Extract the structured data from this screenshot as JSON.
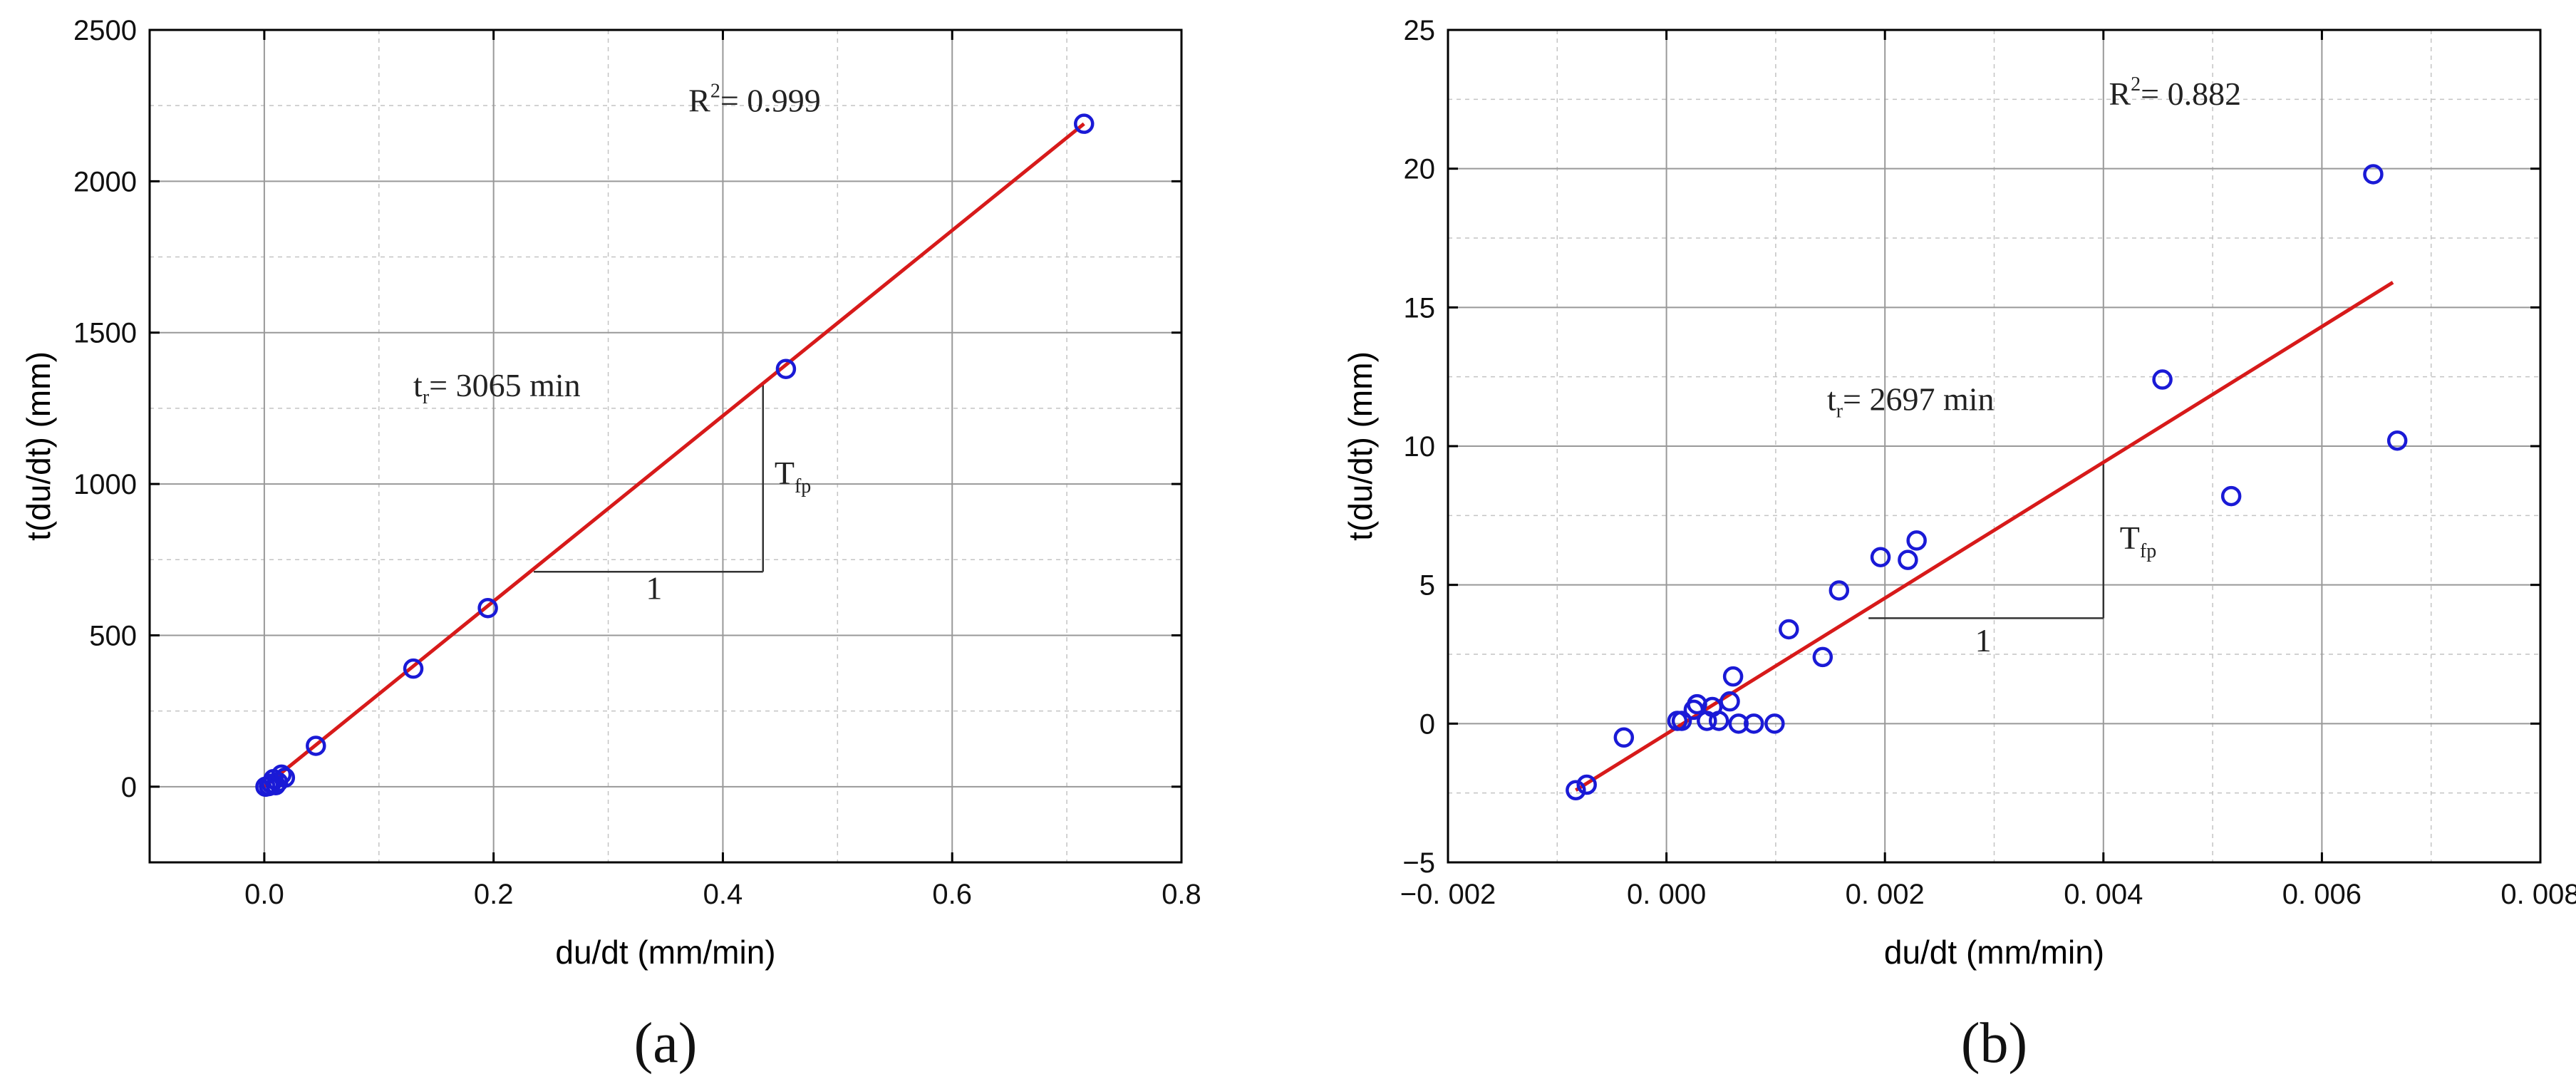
{
  "chart_data": [
    {
      "type": "scatter",
      "panel_label": "(a)",
      "xlabel": "du/dt (mm/min)",
      "ylabel": "t(du/dt) (mm)",
      "xlim": [
        -0.1,
        0.8
      ],
      "ylim": [
        -250,
        2500
      ],
      "xticks": [
        0.0,
        0.2,
        0.4,
        0.6,
        0.8
      ],
      "xtick_labels": [
        "0.0",
        "0.2",
        "0.4",
        "0.6",
        "0.8"
      ],
      "yticks": [
        0,
        500,
        1000,
        1500,
        2000,
        2500
      ],
      "ytick_labels": [
        "0",
        "500",
        "1000",
        "1500",
        "2000",
        "2500"
      ],
      "grid": true,
      "series": [
        {
          "name": "data",
          "x": [
            0.001,
            0.004,
            0.006,
            0.008,
            0.01,
            0.012,
            0.015,
            0.018,
            0.045,
            0.13,
            0.195,
            0.455,
            0.715
          ],
          "y": [
            0,
            2,
            10,
            25,
            5,
            15,
            40,
            30,
            135,
            390,
            590,
            1380,
            2190
          ]
        }
      ],
      "fit": {
        "x": [
          0.0,
          0.715
        ],
        "y": [
          0,
          2190
        ]
      },
      "r2_text": "R",
      "r2_sup": "2",
      "r2_value": "= 0.999",
      "tr_text": "t",
      "tr_sub": "r",
      "tr_value": "= 3065 min",
      "slope_run_label": "1",
      "slope_rise_label": "T",
      "slope_rise_sub": "fp",
      "slope_triangle": {
        "x0": 0.235,
        "x1": 0.435,
        "y_low": 710
      }
    },
    {
      "type": "scatter",
      "panel_label": "(b)",
      "xlabel": "du/dt (mm/min)",
      "ylabel": "t(du/dt) (mm)",
      "xlim": [
        -0.002,
        0.008
      ],
      "ylim": [
        -5,
        25
      ],
      "xticks": [
        -0.002,
        0.0,
        0.002,
        0.004,
        0.006,
        0.008
      ],
      "xtick_labels": [
        "−0. 002",
        "0. 000",
        "0. 002",
        "0. 004",
        "0. 006",
        "0. 008"
      ],
      "yticks": [
        -5,
        0,
        5,
        10,
        15,
        20,
        25
      ],
      "ytick_labels": [
        "−5",
        "0",
        "5",
        "10",
        "15",
        "20",
        "25"
      ],
      "grid": true,
      "series": [
        {
          "name": "data",
          "x": [
            -0.00083,
            -0.00073,
            -0.00039,
            0.0001,
            0.00014,
            0.00025,
            0.00028,
            0.00037,
            0.00042,
            0.00048,
            0.00058,
            0.00061,
            0.00066,
            0.0008,
            0.00099,
            0.00112,
            0.00143,
            0.00158,
            0.00196,
            0.00221,
            0.00229,
            0.00454,
            0.00517,
            0.00647,
            0.00669
          ],
          "y": [
            -2.4,
            -2.2,
            -0.5,
            0.1,
            0.1,
            0.5,
            0.7,
            0.1,
            0.6,
            0.1,
            0.8,
            1.7,
            0.0,
            0.0,
            0.0,
            3.4,
            2.4,
            4.8,
            6.0,
            5.9,
            6.6,
            12.4,
            8.2,
            19.8,
            10.2
          ]
        }
      ],
      "fit": {
        "x": [
          -0.00083,
          0.00665
        ],
        "y": [
          -2.4,
          15.9
        ]
      },
      "r2_text": "R",
      "r2_sup": "2",
      "r2_value": "= 0.882",
      "tr_text": "t",
      "tr_sub": "r",
      "tr_value": "= 2697 min",
      "slope_run_label": "1",
      "slope_rise_label": "T",
      "slope_rise_sub": "fp",
      "slope_triangle": {
        "x0": 0.00185,
        "x1": 0.004,
        "y_low": 3.8
      }
    }
  ]
}
